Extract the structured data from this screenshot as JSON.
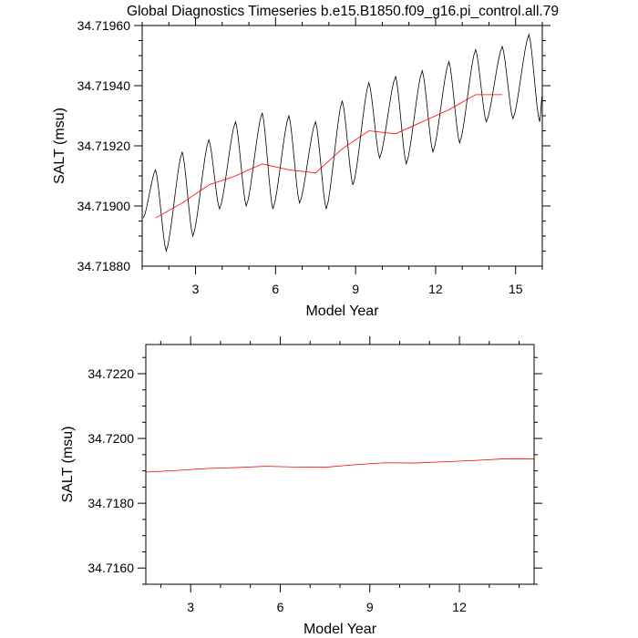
{
  "title": "Global Diagnostics Timeseries b.e15.B1850.f09_g16.pi_control.all.79",
  "chart_data": [
    {
      "type": "line",
      "xlabel": "Model Year",
      "ylabel": "SALT (msu)",
      "xlim": [
        1.0,
        16.0
      ],
      "ylim": [
        34.7188,
        34.7196
      ],
      "xticks": [
        3,
        6,
        9,
        12,
        15
      ],
      "xtick_labels": [
        "3",
        "6",
        "9",
        "12",
        "15"
      ],
      "yticks": [
        34.7188,
        34.719,
        34.7192,
        34.7194,
        34.7196
      ],
      "ytick_labels": [
        "34.71880",
        "34.71900",
        "34.71920",
        "34.71940",
        "34.71960"
      ],
      "series": [
        {
          "color": "#000000",
          "monthly_peak_points": [
            [
              1.04,
              34.71896
            ],
            [
              1.5,
              34.71912
            ],
            [
              1.9,
              34.71885
            ],
            [
              2.5,
              34.71918
            ],
            [
              2.9,
              34.7189
            ],
            [
              3.5,
              34.71922
            ],
            [
              3.9,
              34.71899
            ],
            [
              4.5,
              34.71928
            ],
            [
              4.9,
              34.719
            ],
            [
              5.5,
              34.71931
            ],
            [
              5.9,
              34.71899
            ],
            [
              6.5,
              34.7193
            ],
            [
              6.9,
              34.71901
            ],
            [
              7.5,
              34.71928
            ],
            [
              7.9,
              34.71899
            ],
            [
              8.5,
              34.71935
            ],
            [
              8.9,
              34.71907
            ],
            [
              9.5,
              34.71941
            ],
            [
              9.9,
              34.71916
            ],
            [
              10.5,
              34.71943
            ],
            [
              10.9,
              34.71914
            ],
            [
              11.5,
              34.71945
            ],
            [
              11.9,
              34.71918
            ],
            [
              12.5,
              34.71948
            ],
            [
              12.9,
              34.71921
            ],
            [
              13.5,
              34.71952
            ],
            [
              13.9,
              34.71928
            ],
            [
              14.5,
              34.71953
            ],
            [
              14.9,
              34.71929
            ],
            [
              15.5,
              34.71957
            ],
            [
              15.9,
              34.71928
            ],
            [
              16.0,
              34.71937
            ]
          ]
        },
        {
          "color": "#ff0000",
          "points": [
            [
              1.5,
              34.71896
            ],
            [
              2.5,
              34.71901
            ],
            [
              3.5,
              34.71907
            ],
            [
              4.5,
              34.7191
            ],
            [
              5.5,
              34.71914
            ],
            [
              6.5,
              34.71912
            ],
            [
              7.5,
              34.71911
            ],
            [
              8.5,
              34.71919
            ],
            [
              9.5,
              34.71925
            ],
            [
              10.5,
              34.71924
            ],
            [
              11.5,
              34.71928
            ],
            [
              12.5,
              34.71932
            ],
            [
              13.5,
              34.71937
            ],
            [
              14.5,
              34.71937
            ]
          ]
        }
      ]
    },
    {
      "type": "line",
      "xlabel": "Model Year",
      "ylabel": "SALT (msu)",
      "xlim": [
        1.5,
        14.5
      ],
      "ylim": [
        34.7155,
        34.7229
      ],
      "xticks": [
        3,
        6,
        9,
        12
      ],
      "xtick_labels": [
        "3",
        "6",
        "9",
        "12"
      ],
      "yticks": [
        34.716,
        34.718,
        34.72,
        34.722
      ],
      "ytick_labels": [
        "34.7160",
        "34.7180",
        "34.7200",
        "34.7220"
      ],
      "series": [
        {
          "color": "#ff0000",
          "points": [
            [
              1.5,
              34.71896
            ],
            [
              2.5,
              34.71901
            ],
            [
              3.5,
              34.71907
            ],
            [
              4.5,
              34.7191
            ],
            [
              5.5,
              34.71914
            ],
            [
              6.5,
              34.71912
            ],
            [
              7.5,
              34.71911
            ],
            [
              8.5,
              34.71919
            ],
            [
              9.5,
              34.71925
            ],
            [
              10.5,
              34.71924
            ],
            [
              11.5,
              34.71928
            ],
            [
              12.5,
              34.71932
            ],
            [
              13.5,
              34.71937
            ],
            [
              14.5,
              34.71937
            ]
          ]
        }
      ]
    }
  ]
}
